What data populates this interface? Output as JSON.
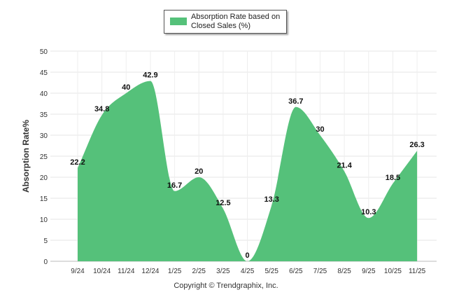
{
  "chart_data": {
    "type": "area",
    "categories": [
      "9/24",
      "10/24",
      "11/24",
      "12/24",
      "1/25",
      "2/25",
      "3/25",
      "4/25",
      "5/25",
      "6/25",
      "7/25",
      "8/25",
      "9/25",
      "10/25",
      "11/25"
    ],
    "series": [
      {
        "name": "Absorption Rate based on Closed Sales (%)",
        "values": [
          22.2,
          34.8,
          40,
          42.9,
          16.7,
          20,
          12.5,
          0,
          13.3,
          36.7,
          30,
          21.4,
          10.3,
          18.5,
          26.3
        ],
        "color": "#55c17a"
      }
    ],
    "data_labels": [
      "22.2",
      "34.8",
      "40",
      "42.9",
      "16.7",
      "20",
      "12.5",
      "0",
      "13.3",
      "36.7",
      "30",
      "21.4",
      "10.3",
      "18.5",
      "26.3"
    ],
    "y_ticks": [
      "0",
      "5",
      "10",
      "15",
      "20",
      "25",
      "30",
      "35",
      "40",
      "45",
      "50"
    ],
    "ylabel": "Absorption Rate%",
    "xlabel": "",
    "ylim": [
      0,
      50
    ],
    "grid": true,
    "legend_position": "top-center"
  },
  "legend": {
    "label": "Absorption Rate based on Closed Sales (%)"
  },
  "footer": {
    "copyright": "Copyright © Trendgraphix, Inc."
  }
}
